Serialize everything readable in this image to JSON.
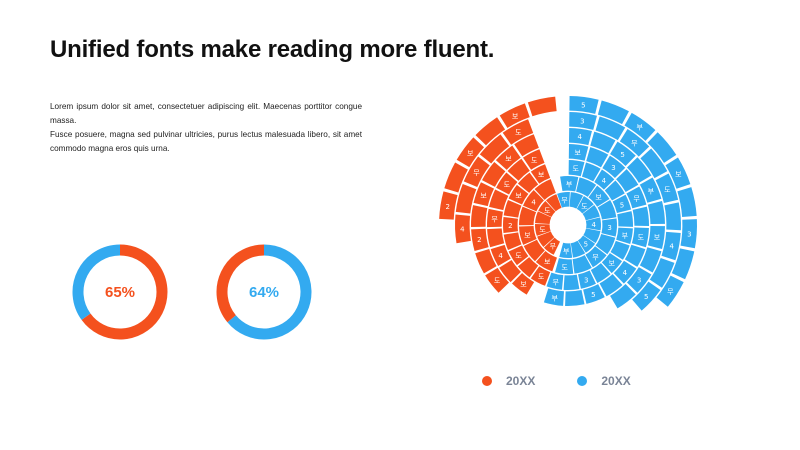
{
  "title": "Unified fonts make reading more fluent.",
  "paragraphs": [
    "Lorem ipsum dolor sit amet, consectetuer adipiscing elit. Maecenas porttitor congue massa.",
    "Fusce posuere, magna sed pulvinar ultricies, purus lectus malesuada libero, sit amet commodo magna eros quis urna."
  ],
  "colors": {
    "orange": "#f4511e",
    "blue": "#33aaf0",
    "track": "#ffffff"
  },
  "donuts": [
    {
      "label": "65%",
      "value": 0.65,
      "color": "orange",
      "remainder_color": "blue"
    },
    {
      "label": "64%",
      "value": 0.64,
      "color": "blue",
      "remainder_color": "orange"
    }
  ],
  "chart_data": {
    "type": "sunburst",
    "rings": 7,
    "orange_sector_degrees": [
      [
        205,
        340
      ],
      [
        198,
        340
      ],
      [
        200,
        340
      ],
      [
        210,
        340
      ],
      [
        225,
        340
      ],
      [
        260,
        340
      ],
      [
        272,
        355
      ]
    ],
    "blue_sector_degrees": [
      [
        -20,
        196
      ],
      [
        -10,
        196
      ],
      [
        0,
        200
      ],
      [
        0,
        198
      ],
      [
        0,
        150
      ],
      [
        0,
        140
      ],
      [
        0,
        130
      ]
    ],
    "segment_labels_orange": [
      "무",
      "보",
      "도",
      "보",
      "도",
      "4",
      "2"
    ],
    "segment_labels_blue": [
      "무",
      "부",
      "도",
      "보",
      "4",
      "3",
      "5"
    ]
  },
  "legend": [
    {
      "label": "20XX",
      "color": "orange"
    },
    {
      "label": "20XX",
      "color": "blue"
    }
  ]
}
